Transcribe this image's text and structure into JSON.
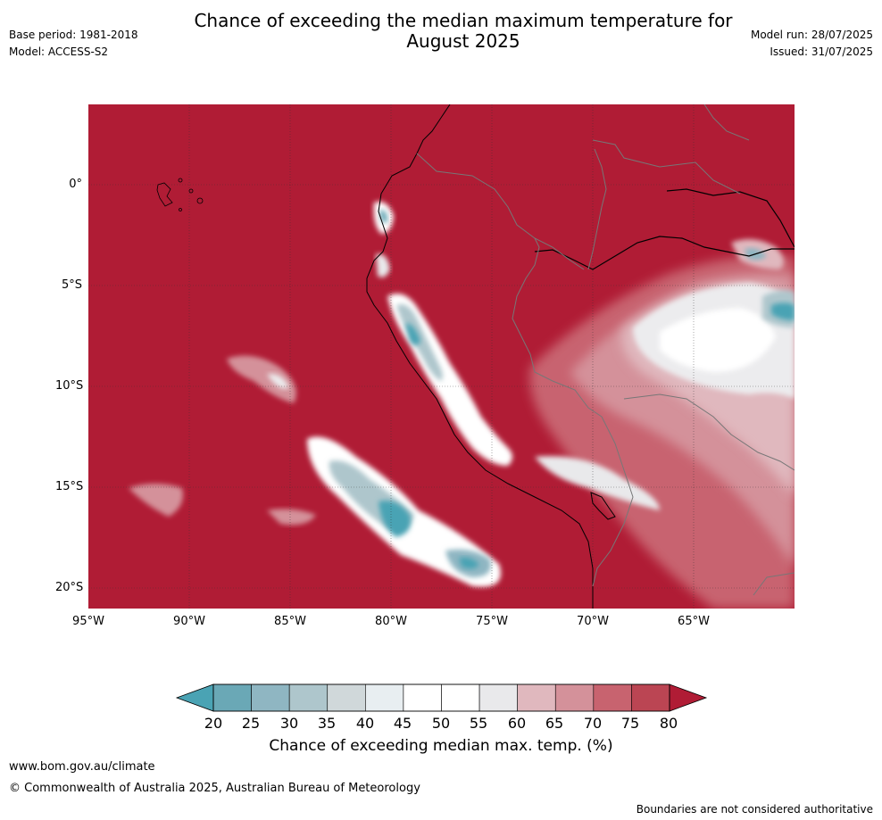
{
  "title_line1": "Chance of exceeding the median maximum temperature for",
  "title_line2": "August 2025",
  "base_period": "Base period: 1981-2018",
  "model": "Model: ACCESS-S2",
  "model_run": "Model run: 28/07/2025",
  "issued": "Issued: 31/07/2025",
  "y_ticks": [
    "0°",
    "5°S",
    "10°S",
    "15°S",
    "20°S"
  ],
  "x_ticks": [
    "95°W",
    "90°W",
    "85°W",
    "80°W",
    "75°W",
    "70°W",
    "65°W"
  ],
  "colorbar": {
    "title": "Chance of exceeding median max. temp. (%)",
    "labels": [
      "20",
      "25",
      "30",
      "35",
      "40",
      "45",
      "50",
      "55",
      "60",
      "65",
      "70",
      "75",
      "80"
    ],
    "colors": [
      "#6aa8b6",
      "#8fb6c2",
      "#aec6cc",
      "#d0d8da",
      "#e8eef1",
      "#ffffff",
      "#ffffff",
      "#e9e9eb",
      "#e0b8be",
      "#d4919a",
      "#c8636f",
      "#bb4553"
    ],
    "low_color": "#4aa3b4",
    "high_color": "#b01c35"
  },
  "footer": {
    "url": "www.bom.gov.au/climate",
    "copyright": "© Commonwealth of Australia 2025, Australian Bureau of Meteorology",
    "note": "Boundaries are not considered authoritative"
  }
}
